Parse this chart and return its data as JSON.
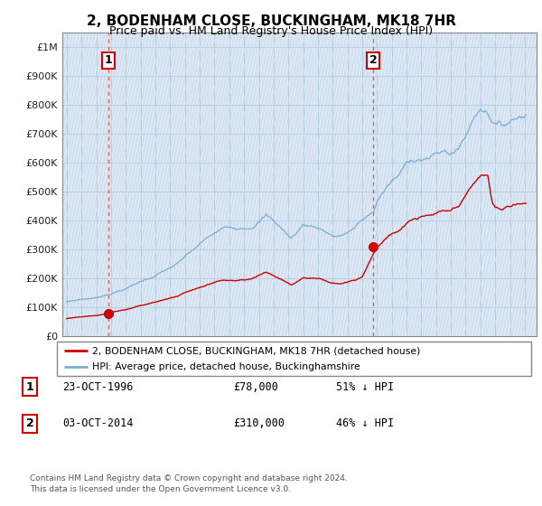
{
  "title": "2, BODENHAM CLOSE, BUCKINGHAM, MK18 7HR",
  "subtitle": "Price paid vs. HM Land Registry's House Price Index (HPI)",
  "legend_line1": "2, BODENHAM CLOSE, BUCKINGHAM, MK18 7HR (detached house)",
  "legend_line2": "HPI: Average price, detached house, Buckinghamshire",
  "table_row1": [
    "1",
    "23-OCT-1996",
    "£78,000",
    "51% ↓ HPI"
  ],
  "table_row2": [
    "2",
    "03-OCT-2014",
    "£310,000",
    "46% ↓ HPI"
  ],
  "footnote": "Contains HM Land Registry data © Crown copyright and database right 2024.\nThis data is licensed under the Open Government Licence v3.0.",
  "sale_color": "#cc0000",
  "hpi_color": "#7aadd4",
  "dashed_line_color": "#e06060",
  "sale1_x": 1996.81,
  "sale1_y": 78000,
  "sale2_x": 2014.75,
  "sale2_y": 310000,
  "ylim": [
    0,
    1050000
  ],
  "xlim_start": 1993.7,
  "xlim_end": 2025.8,
  "bg_color": "#dce9f5",
  "hatch_color": "#c8d8ea"
}
